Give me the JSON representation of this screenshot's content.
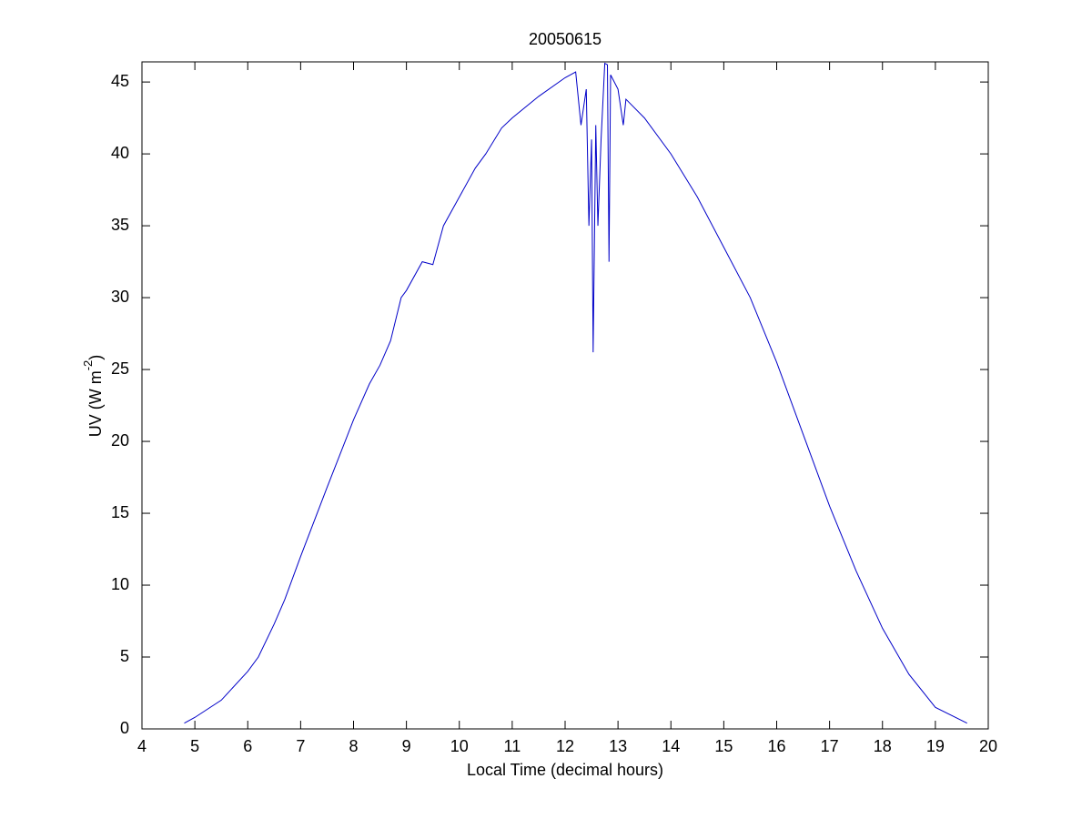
{
  "chart_data": {
    "type": "line",
    "title": "20050615",
    "xlabel": "Local Time (decimal hours)",
    "ylabel": {
      "text": "UV (W m",
      "superscript": "-2",
      "suffix": ")"
    },
    "x": [
      4.8,
      5.0,
      5.5,
      6.0,
      6.2,
      6.5,
      6.7,
      7.0,
      7.5,
      8.0,
      8.3,
      8.5,
      8.7,
      8.9,
      9.0,
      9.3,
      9.5,
      9.7,
      10.0,
      10.3,
      10.5,
      10.8,
      11.0,
      11.5,
      12.0,
      12.2,
      12.3,
      12.4,
      12.45,
      12.5,
      12.53,
      12.58,
      12.62,
      12.68,
      12.75,
      12.8,
      12.83,
      12.86,
      13.0,
      13.1,
      13.15,
      13.5,
      14.0,
      14.5,
      15.0,
      15.5,
      16.0,
      16.5,
      17.0,
      17.5,
      18.0,
      18.5,
      19.0,
      19.6
    ],
    "series": [
      {
        "color": "#0000c8",
        "values": [
          0.4,
          0.8,
          2.0,
          4.0,
          5.0,
          7.3,
          9.0,
          12.0,
          16.8,
          21.5,
          24.0,
          25.3,
          27.0,
          30.0,
          30.5,
          32.5,
          32.3,
          35.0,
          37.0,
          39.0,
          40.0,
          41.8,
          42.5,
          44.0,
          45.3,
          45.7,
          42.0,
          44.5,
          35.0,
          41.0,
          26.2,
          42.0,
          35.0,
          41.0,
          46.3,
          46.2,
          32.5,
          45.5,
          44.5,
          42.0,
          43.8,
          42.5,
          40.0,
          37.0,
          33.5,
          30.0,
          25.5,
          20.5,
          15.5,
          11.0,
          7.0,
          3.8,
          1.5,
          0.4
        ]
      }
    ],
    "xlim": [
      4,
      20
    ],
    "xticks": [
      4,
      5,
      6,
      7,
      8,
      9,
      10,
      11,
      12,
      13,
      14,
      15,
      16,
      17,
      18,
      19,
      20
    ],
    "ylim": [
      0,
      46.4
    ],
    "yticks": [
      0,
      5,
      10,
      15,
      20,
      25,
      30,
      35,
      40,
      45
    ],
    "grid": false
  }
}
